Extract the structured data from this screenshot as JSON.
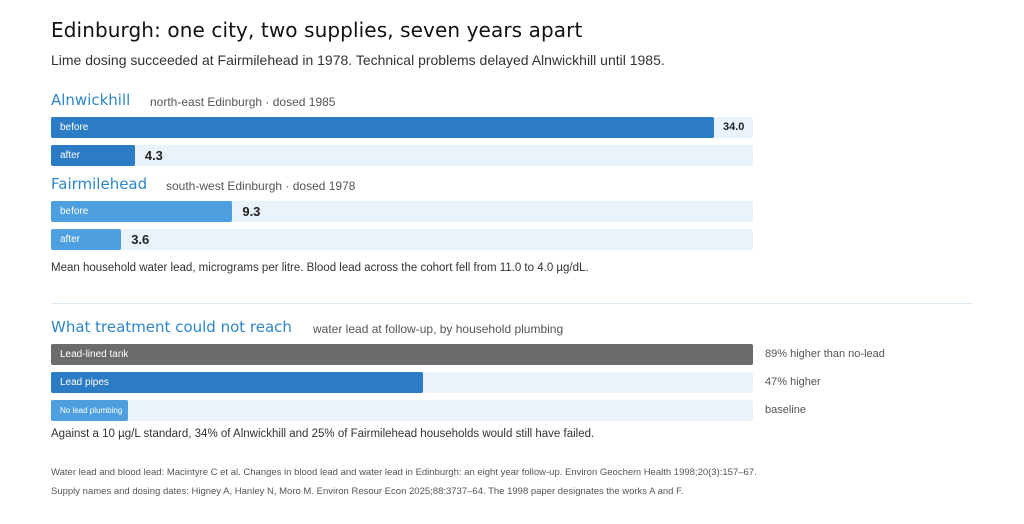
{
  "title": "Edinburgh: one city, two supplies, seven years apart",
  "subtitle": "Lime dosing succeeded at Fairmilehead in 1978. Technical problems delayed Alnwickhill until 1985.",
  "colors": {
    "dark_blue": "#2b7cc4",
    "light_blue": "#4d9fdf",
    "grey": "#6b6b6e",
    "track": "#eaf3fc",
    "heading": "#2e86c8"
  },
  "chart_data": [
    {
      "type": "bar",
      "orientation": "horizontal",
      "xlim": [
        0,
        36
      ],
      "caption": "Mean household water lead, micrograms per litre. Blood lead across the cohort fell from 11.0 to 4.0 µg/dL.",
      "groups": [
        {
          "name": "Alnwickhill",
          "note": "north-east Edinburgh · dosed 1985",
          "bars": [
            {
              "label": "before",
              "value": 34.0,
              "value_text": "34.0",
              "color": "#2b7cc4"
            },
            {
              "label": "after",
              "value": 4.3,
              "value_text": "4.3",
              "color": "#2b7cc4"
            }
          ]
        },
        {
          "name": "Fairmilehead",
          "note": "south-west Edinburgh · dosed 1978",
          "bars": [
            {
              "label": "before",
              "value": 9.3,
              "value_text": "9.3",
              "color": "#4d9fdf"
            },
            {
              "label": "after",
              "value": 3.6,
              "value_text": "3.6",
              "color": "#4d9fdf"
            }
          ]
        }
      ]
    },
    {
      "type": "bar",
      "orientation": "horizontal",
      "title": "What treatment could not reach",
      "note": "water lead at follow-up, by household plumbing",
      "caption": "Against a 10 µg/L standard, 34% of Alnwickhill and 25% of Fairmilehead households would still have failed.",
      "scale_note": "relative to no-lead baseline",
      "bars": [
        {
          "label": "Lead-lined tank",
          "relative": 1.89,
          "annotation": "89% higher than no-lead",
          "color": "#6b6b6e"
        },
        {
          "label": "Lead pipes",
          "relative": 1.47,
          "annotation": "47% higher",
          "color": "#2b7cc4"
        },
        {
          "label": "No lead plumbing",
          "relative": 1.0,
          "annotation": "baseline",
          "color": "#4d9fdf"
        }
      ]
    }
  ],
  "sources": [
    "Water lead and blood lead: Macintyre C et al. Changes in blood lead and water lead in Edinburgh: an eight year follow-up. Environ Geochem Health 1998;20(3):157–67.",
    "Supply names and dosing dates: Higney A, Hanley N, Moro M. Environ Resour Econ 2025;88:3737–64. The 1998 paper designates the works A and F."
  ]
}
